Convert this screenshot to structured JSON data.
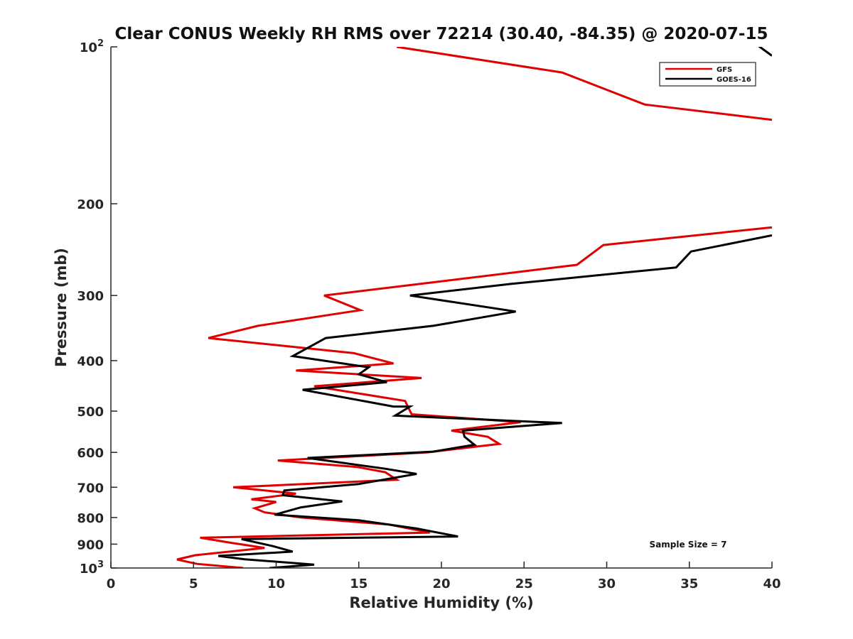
{
  "chart_data": {
    "type": "line",
    "title": "Clear CONUS Weekly RH RMS over 72214 (30.40, -84.35) @ 2020-07-15",
    "xlabel": "Relative Humidity (%)",
    "ylabel": "Pressure (mb)",
    "xlim": [
      0,
      40
    ],
    "ylim": [
      100,
      1000
    ],
    "yscale": "log",
    "y_reversed": true,
    "grid": false,
    "legend_position": "top-right",
    "x_ticks": [
      0,
      5,
      10,
      15,
      20,
      25,
      30,
      35,
      40
    ],
    "x_tick_labels": [
      "0",
      "5",
      "10",
      "15",
      "20",
      "25",
      "30",
      "35",
      "40"
    ],
    "y_ticks": [
      100,
      200,
      300,
      400,
      500,
      600,
      700,
      800,
      900,
      1000
    ],
    "y_tick_labels": [
      {
        "base": "10",
        "exp": "2"
      },
      {
        "base": "200"
      },
      {
        "base": "300"
      },
      {
        "base": "400"
      },
      {
        "base": "500"
      },
      {
        "base": "600"
      },
      {
        "base": "700"
      },
      {
        "base": "800"
      },
      {
        "base": "900"
      },
      {
        "base": "10",
        "exp": "3"
      }
    ],
    "annotation": "Sample Size = 7",
    "series": [
      {
        "name": "GFS",
        "color": "#e00000",
        "segments": [
          [
            [
              17.3,
              100
            ],
            [
              27.3,
              112
            ],
            [
              32.3,
              129
            ],
            [
              40,
              138
            ]
          ],
          [
            [
              40,
              222
            ],
            [
              29.8,
              240
            ],
            [
              28.2,
              262
            ],
            [
              19.5,
              283
            ],
            [
              12.9,
              300
            ],
            [
              15.1,
              320
            ],
            [
              8.9,
              343
            ],
            [
              5.9,
              362
            ],
            [
              14.7,
              387
            ],
            [
              17.1,
              405
            ],
            [
              11.2,
              418
            ],
            [
              18.8,
              432
            ],
            [
              12.3,
              448
            ],
            [
              17.8,
              478
            ],
            [
              18.2,
              507
            ],
            [
              24.8,
              525
            ],
            [
              20.6,
              545
            ],
            [
              22.8,
              560
            ],
            [
              23.5,
              578
            ],
            [
              19.1,
              600
            ],
            [
              10.1,
              622
            ],
            [
              14.9,
              640
            ],
            [
              16.6,
              655
            ],
            [
              17.3,
              677
            ],
            [
              7.4,
              700
            ],
            [
              11.2,
              720
            ],
            [
              8.5,
              738
            ],
            [
              10.0,
              747
            ],
            [
              8.7,
              768
            ],
            [
              9.3,
              782
            ],
            [
              11.5,
              800
            ],
            [
              16.8,
              825
            ],
            [
              19.3,
              855
            ],
            [
              5.4,
              875
            ],
            [
              7.3,
              895
            ],
            [
              9.3,
              915
            ],
            [
              5.1,
              945
            ],
            [
              4.0,
              963
            ],
            [
              5.2,
              982
            ],
            [
              8.0,
              1000
            ]
          ]
        ]
      },
      {
        "name": "GOES-16",
        "color": "#000000",
        "segments": [
          [
            [
              38.5,
              96
            ],
            [
              40,
              104
            ]
          ],
          [
            [
              40,
              230
            ],
            [
              35.1,
              247
            ],
            [
              34.2,
              265
            ],
            [
              24.2,
              285
            ],
            [
              18.1,
              300
            ],
            [
              24.5,
              322
            ],
            [
              19.5,
              343
            ],
            [
              13.0,
              362
            ],
            [
              11.0,
              392
            ],
            [
              15.6,
              412
            ],
            [
              15.0,
              425
            ],
            [
              16.7,
              440
            ],
            [
              11.6,
              455
            ],
            [
              17.1,
              490
            ],
            [
              18.1,
              490
            ],
            [
              17.2,
              510
            ],
            [
              27.3,
              527
            ],
            [
              21.3,
              545
            ],
            [
              21.4,
              560
            ],
            [
              22.0,
              580
            ],
            [
              19.5,
              598
            ],
            [
              11.9,
              615
            ],
            [
              16.6,
              645
            ],
            [
              18.5,
              660
            ],
            [
              15.0,
              690
            ],
            [
              10.5,
              710
            ],
            [
              10.4,
              725
            ],
            [
              14.0,
              745
            ],
            [
              11.5,
              765
            ],
            [
              9.9,
              790
            ],
            [
              15.0,
              810
            ],
            [
              18.5,
              840
            ],
            [
              21.0,
              870
            ],
            [
              7.9,
              880
            ],
            [
              9.8,
              908
            ],
            [
              11.0,
              930
            ],
            [
              6.5,
              948
            ],
            [
              8.1,
              962
            ],
            [
              12.3,
              985
            ],
            [
              9.6,
              1000
            ]
          ]
        ]
      }
    ]
  }
}
